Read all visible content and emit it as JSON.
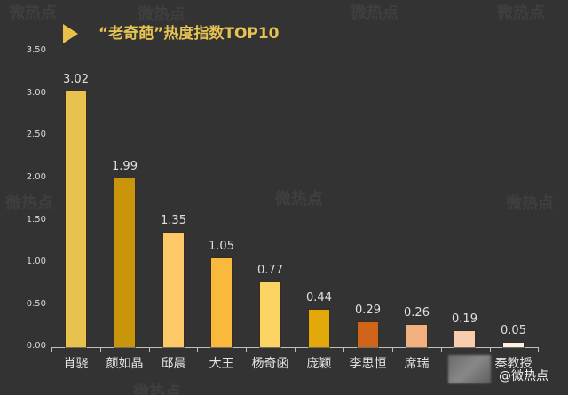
{
  "chart_data": {
    "type": "bar",
    "title": "“老奇葩”热度指数TOP10",
    "xlabel": "",
    "ylabel": "",
    "ylim": [
      0,
      3.5
    ],
    "yticks": [
      "0.00",
      "0.50",
      "1.00",
      "1.50",
      "2.00",
      "2.50",
      "3.00",
      "3.50"
    ],
    "grid": false,
    "legend": null,
    "categories": [
      "肖骁",
      "颜如晶",
      "邱晨",
      "大王",
      "杨奇函",
      "庞颖",
      "李思恒",
      "席瑞",
      "",
      "秦教授"
    ],
    "values": [
      3.02,
      1.99,
      1.35,
      1.05,
      0.77,
      0.44,
      0.29,
      0.26,
      0.19,
      0.05
    ],
    "value_labels": [
      "3.02",
      "1.99",
      "1.35",
      "1.05",
      "0.77",
      "0.44",
      "0.29",
      "0.26",
      "0.19",
      "0.05"
    ],
    "bar_colors": [
      "#e8c24e",
      "#c9950a",
      "#fdc968",
      "#f9b93c",
      "#fcd464",
      "#e3a90a",
      "#d0641a",
      "#f0b080",
      "#f8ccae",
      "#fbf0e4"
    ],
    "annotations": [
      "@微热点"
    ]
  },
  "header": {
    "title": "“老奇葩”热度指数TOP10",
    "title_color": "#e6c253",
    "marker": "play-triangle"
  },
  "footer": {
    "credit": "@微热点",
    "obscured_label_note": "9th category label is blurred"
  },
  "watermark": "微热点"
}
